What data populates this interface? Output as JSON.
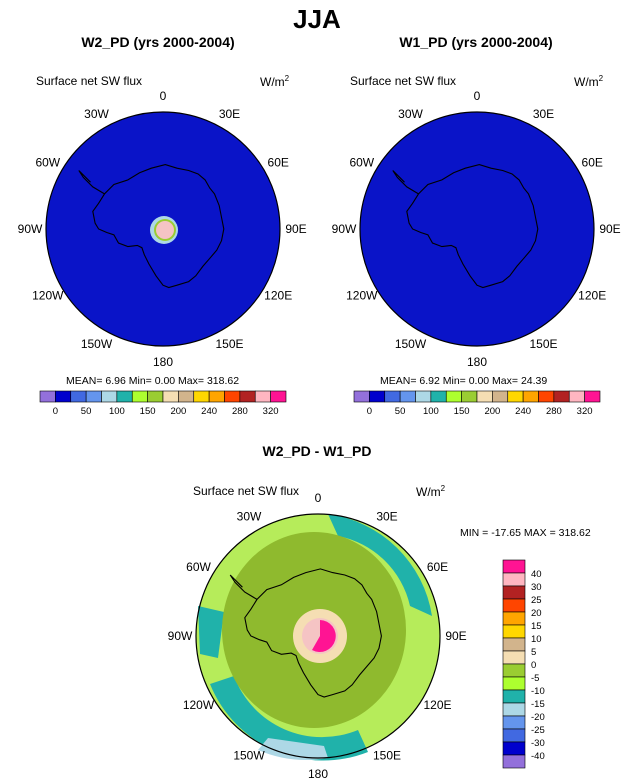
{
  "figure": {
    "title": "JJA"
  },
  "panels": [
    {
      "id": "w2",
      "title": "W2_PD (yrs 2000-2004)",
      "variable": "Surface net SW flux",
      "units_base": "W/m",
      "units_exp": "2",
      "stats": {
        "mean": "6.96",
        "min": "0.00",
        "max": "318.62"
      },
      "stats_text": "MEAN=  6.96  Min=   0.00  Max= 318.62",
      "lon_labels": [
        "0",
        "30E",
        "60E",
        "90E",
        "120E",
        "150E",
        "180",
        "150W",
        "120W",
        "90W",
        "60W",
        "30W"
      ],
      "colorbar_ticks": [
        "0",
        "50",
        "100",
        "150",
        "200",
        "240",
        "280",
        "320"
      ],
      "colors": [
        "#9370db",
        "#0000cd",
        "#4169e1",
        "#6495ed",
        "#add8e6",
        "#20b2aa",
        "#adff2f",
        "#9acd32",
        "#f5deb3",
        "#d2b48c",
        "#ffd700",
        "#ffa500",
        "#ff4500",
        "#b22222",
        "#ffb6c1",
        "#ff1493"
      ]
    },
    {
      "id": "w1",
      "title": "W1_PD (yrs 2000-2004)",
      "variable": "Surface net SW flux",
      "units_base": "W/m",
      "units_exp": "2",
      "stats": {
        "mean": "6.92",
        "min": "0.00",
        "max": "24.39"
      },
      "stats_text": "MEAN=  6.92  Min=   0.00  Max=  24.39",
      "lon_labels": [
        "0",
        "30E",
        "60E",
        "90E",
        "120E",
        "150E",
        "180",
        "150W",
        "120W",
        "90W",
        "60W",
        "30W"
      ],
      "colorbar_ticks": [
        "0",
        "50",
        "100",
        "150",
        "200",
        "240",
        "280",
        "320"
      ],
      "colors": [
        "#9370db",
        "#0000cd",
        "#4169e1",
        "#6495ed",
        "#add8e6",
        "#20b2aa",
        "#adff2f",
        "#9acd32",
        "#f5deb3",
        "#d2b48c",
        "#ffd700",
        "#ffa500",
        "#ff4500",
        "#b22222",
        "#ffb6c1",
        "#ff1493"
      ]
    },
    {
      "id": "diff",
      "title": "W2_PD - W1_PD",
      "variable": "Surface net SW flux",
      "units": "W/m",
      "units_exp": "2",
      "stats": {
        "min": "-17.65",
        "max": "318.62"
      },
      "stats_text": "MIN = -17.65 MAX = 318.62",
      "lon_labels": [
        "0",
        "30E",
        "60E",
        "90E",
        "120E",
        "150E",
        "180",
        "150W",
        "120W",
        "90W",
        "60W",
        "30W"
      ],
      "colorbar_ticks": [
        "40",
        "30",
        "25",
        "20",
        "15",
        "10",
        "5",
        "0",
        "-5",
        "-10",
        "-15",
        "-20",
        "-25",
        "-30",
        "-40"
      ],
      "colors": [
        "#ff1493",
        "#ffb6c1",
        "#b22222",
        "#ff4500",
        "#ffa500",
        "#ffd700",
        "#d2b48c",
        "#f5deb3",
        "#9acd32",
        "#adff2f",
        "#20b2aa",
        "#add8e6",
        "#6495ed",
        "#4169e1",
        "#0000cd",
        "#9370db"
      ]
    }
  ],
  "map_colors": {
    "ocean_low": "#0a14c8",
    "diff_field": "#8fba2e",
    "diff_outer": "#b6ec5a",
    "diff_band": "#20b2aa",
    "diff_light": "#add8e6",
    "pole_pink": "#f5c4c4",
    "pole_beige": "#f5deb3",
    "pole_magenta": "#ff1493"
  }
}
